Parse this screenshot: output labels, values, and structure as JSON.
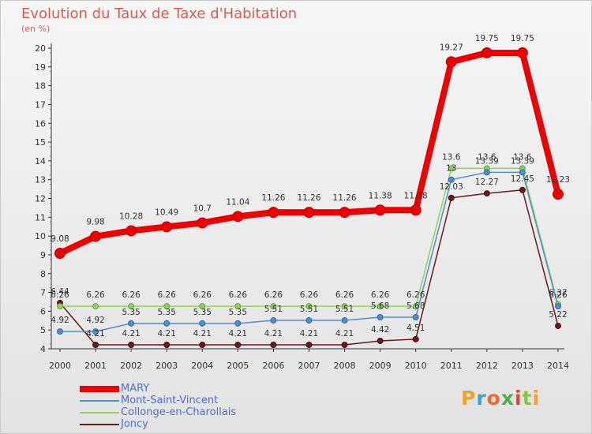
{
  "title": "Evolution du Taux de Taxe d'Habitation",
  "subtitle": "(en %)",
  "logo": {
    "text": "Proxiti",
    "colors": [
      "#f2a12c",
      "#3ba2d8",
      "#f26a2b",
      "#4cae4c",
      "#e2452f",
      "#8bc34a",
      "#f2a12c"
    ]
  },
  "chart_data": {
    "type": "line",
    "x": [
      "2000",
      "2001",
      "2002",
      "2003",
      "2004",
      "2005",
      "2006",
      "2007",
      "2008",
      "2009",
      "2010",
      "2011",
      "2012",
      "2013",
      "2014"
    ],
    "ylim": [
      4,
      20
    ],
    "yticks": [
      4,
      5,
      6,
      7,
      8,
      9,
      10,
      11,
      12,
      13,
      14,
      15,
      16,
      17,
      18,
      19,
      20
    ],
    "grid": false,
    "legend_position": "bottom-left",
    "series": [
      {
        "name": "MARY",
        "color": "#ee0000",
        "values": [
          9.08,
          9.98,
          10.28,
          10.49,
          10.7,
          11.04,
          11.26,
          11.26,
          11.26,
          11.38,
          11.38,
          19.27,
          19.75,
          19.75,
          12.23
        ],
        "labels": [
          "9.08",
          "9.98",
          "10.28",
          "10.49",
          "10.7",
          "11.04",
          "11.26",
          "11.26",
          "11.26",
          "11.38",
          "11.38",
          "19.27",
          "19.75",
          "19.75",
          "12.23"
        ]
      },
      {
        "name": "Mont-Saint-Vincent",
        "color": "#4d8fcf",
        "values": [
          4.92,
          4.92,
          5.35,
          5.35,
          5.35,
          5.35,
          5.51,
          5.51,
          5.51,
          5.68,
          5.68,
          13,
          13.39,
          13.39,
          6.26
        ],
        "labels": [
          "4.92",
          "4.92",
          "5.35",
          "5.35",
          "5.35",
          "5.35",
          "5.51",
          "5.51",
          "5.51",
          "5.68",
          "5.68",
          "13",
          "13.39",
          "13.39",
          "6.26"
        ]
      },
      {
        "name": "Collonge-en-Charollais",
        "color": "#8fd45a",
        "values": [
          6.26,
          6.26,
          6.26,
          6.26,
          6.26,
          6.26,
          6.26,
          6.26,
          6.26,
          6.26,
          6.26,
          13.6,
          13.6,
          13.6,
          6.37
        ],
        "labels": [
          "6.26",
          "6.26",
          "6.26",
          "6.26",
          "6.26",
          "6.26",
          "6.26",
          "6.26",
          "6.26",
          "6.26",
          "6.26",
          "13.6",
          "13.6",
          "13.6",
          "6.37"
        ]
      },
      {
        "name": "Joncy",
        "color": "#6b1a1a",
        "values": [
          6.44,
          4.21,
          4.21,
          4.21,
          4.21,
          4.21,
          4.21,
          4.21,
          4.21,
          4.42,
          4.51,
          12.03,
          12.27,
          12.45,
          5.22
        ],
        "labels": [
          "6.44",
          "4.21",
          "4.21",
          "4.21",
          "4.21",
          "4.21",
          "4.21",
          "4.21",
          "4.21",
          "4.42",
          "4.51",
          "12.03",
          "12.27",
          "12.45",
          "5.22"
        ]
      }
    ]
  }
}
